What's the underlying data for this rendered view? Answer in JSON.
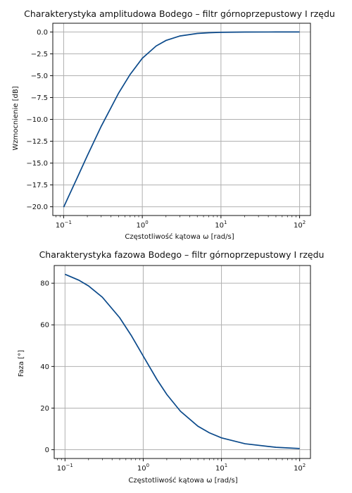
{
  "chart_data": [
    {
      "type": "line",
      "title": "Charakterystyka amplitudowa Bodego – filtr górnoprzepustowy I rzędu",
      "xlabel": "Częstotliwość kątowa ω [rad/s]",
      "ylabel": "Wzmocnienie [dB]",
      "xscale": "log",
      "xlim": [
        0.1,
        100
      ],
      "ylim": [
        -20.0,
        0.0
      ],
      "xticks": [
        {
          "base": "10",
          "exp": "−1",
          "value": 0.1
        },
        {
          "base": "10",
          "exp": "0",
          "value": 1
        },
        {
          "base": "10",
          "exp": "1",
          "value": 10
        },
        {
          "base": "10",
          "exp": "2",
          "value": 100
        }
      ],
      "yticks": [
        {
          "label": "0.0",
          "value": 0.0
        },
        {
          "label": "−2.5",
          "value": -2.5
        },
        {
          "label": "−5.0",
          "value": -5.0
        },
        {
          "label": "−7.5",
          "value": -7.5
        },
        {
          "label": "−10.0",
          "value": -10.0
        },
        {
          "label": "−12.5",
          "value": -12.5
        },
        {
          "label": "−15.0",
          "value": -15.0
        },
        {
          "label": "−17.5",
          "value": -17.5
        },
        {
          "label": "−20.0",
          "value": -20.0
        }
      ],
      "grid": true,
      "series": [
        {
          "color": "#0b4a8b",
          "x": [
            0.1,
            0.15,
            0.2,
            0.3,
            0.5,
            0.7,
            1.0,
            1.5,
            2.0,
            3.0,
            5.0,
            7.0,
            10.0,
            20.0,
            50.0,
            100.0
          ],
          "y": [
            -20.04,
            -16.61,
            -14.15,
            -10.8,
            -6.99,
            -4.86,
            -3.01,
            -1.6,
            -0.97,
            -0.46,
            -0.17,
            -0.09,
            -0.04,
            -0.01,
            0.0,
            0.0
          ]
        }
      ]
    },
    {
      "type": "line",
      "title": "Charakterystyka fazowa Bodego – filtr górnoprzepustowy I rzędu",
      "xlabel": "Częstotliwość kątowa ω [rad/s]",
      "ylabel": "Faza [°]",
      "xscale": "log",
      "xlim": [
        0.1,
        100
      ],
      "ylim": [
        0,
        84.29
      ],
      "xticks": [
        {
          "base": "10",
          "exp": "−1",
          "value": 0.1
        },
        {
          "base": "10",
          "exp": "0",
          "value": 1
        },
        {
          "base": "10",
          "exp": "1",
          "value": 10
        },
        {
          "base": "10",
          "exp": "2",
          "value": 100
        }
      ],
      "yticks": [
        {
          "label": "0",
          "value": 0
        },
        {
          "label": "20",
          "value": 20
        },
        {
          "label": "40",
          "value": 40
        },
        {
          "label": "60",
          "value": 60
        },
        {
          "label": "80",
          "value": 80
        }
      ],
      "grid": true,
      "series": [
        {
          "color": "#0b4a8b",
          "x": [
            0.1,
            0.15,
            0.2,
            0.3,
            0.5,
            0.7,
            1.0,
            1.5,
            2.0,
            3.0,
            5.0,
            7.0,
            10.0,
            20.0,
            50.0,
            100.0
          ],
          "y": [
            84.29,
            81.47,
            78.69,
            73.3,
            63.43,
            55.01,
            45.0,
            33.69,
            26.57,
            18.43,
            11.31,
            8.13,
            5.71,
            2.86,
            1.15,
            0.57
          ]
        }
      ]
    }
  ]
}
